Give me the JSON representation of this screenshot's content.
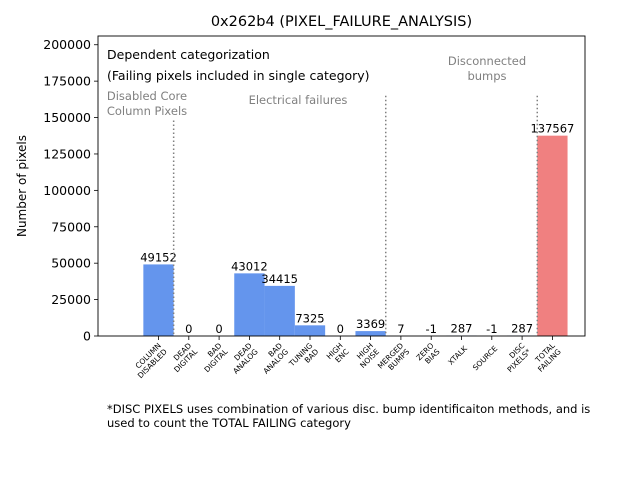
{
  "chart_data": {
    "type": "bar",
    "title": "0x262b4 (PIXEL_FAILURE_ANALYSIS)",
    "xlabel": "",
    "ylabel": "Number of pixels",
    "ylim": [
      0,
      206000
    ],
    "yticks": [
      0,
      25000,
      50000,
      75000,
      100000,
      125000,
      150000,
      175000,
      200000
    ],
    "ytick_labels": [
      "0",
      "25000",
      "50000",
      "75000",
      "100000",
      "125000",
      "150000",
      "175000",
      "200000"
    ],
    "categories": [
      [
        "COLUMN",
        "DISABLED"
      ],
      [
        "DEAD",
        "DIGITAL"
      ],
      [
        "BAD",
        "DIGITAL"
      ],
      [
        "DEAD",
        "ANALOG"
      ],
      [
        "BAD",
        "ANALOG"
      ],
      [
        "TUNING",
        "BAD"
      ],
      [
        "HIGH",
        "ENC"
      ],
      [
        "HIGH",
        "NOISE"
      ],
      [
        "MERGED",
        "BUMPS"
      ],
      [
        "ZERO",
        "BIAS"
      ],
      [
        "XTALK"
      ],
      [
        "SOURCE"
      ],
      [
        "DISC",
        "PIXELS*"
      ],
      [
        "TOTAL",
        "FAILING"
      ]
    ],
    "values": [
      49152,
      0,
      0,
      43012,
      34415,
      7325,
      0,
      3369,
      7,
      -1,
      287,
      -1,
      287,
      137567
    ],
    "value_labels": [
      "49152",
      "0",
      "0",
      "43012",
      "34415",
      "7325",
      "0",
      "3369",
      "7",
      "-1",
      "287",
      "-1",
      "287",
      "137567"
    ],
    "bar_colors": [
      "#6495ED",
      "#6495ED",
      "#6495ED",
      "#6495ED",
      "#6495ED",
      "#6495ED",
      "#6495ED",
      "#6495ED",
      "#6495ED",
      "#6495ED",
      "#6495ED",
      "#6495ED",
      "#6495ED",
      "#F08080"
    ],
    "legend_box": [
      "Dependent categorization",
      "(Failing pixels included in single category)"
    ],
    "group_labels": [
      {
        "lines": [
          "Disabled Core",
          "Column Pixels"
        ],
        "separator_after_index": 0,
        "separator_top_value": 148000
      },
      {
        "lines": [
          "Electrical failures"
        ],
        "separator_after_index": 7,
        "separator_top_value": 165000
      },
      {
        "lines": [
          "Disconnected",
          "bumps"
        ],
        "separator_after_index": 12,
        "separator_top_value": 165000
      }
    ]
  },
  "footnote": {
    "line1": "*DISC PIXELS uses combination of various disc. bump identificaiton methods, and is",
    "line2": "used to count the TOTAL FAILING category"
  }
}
